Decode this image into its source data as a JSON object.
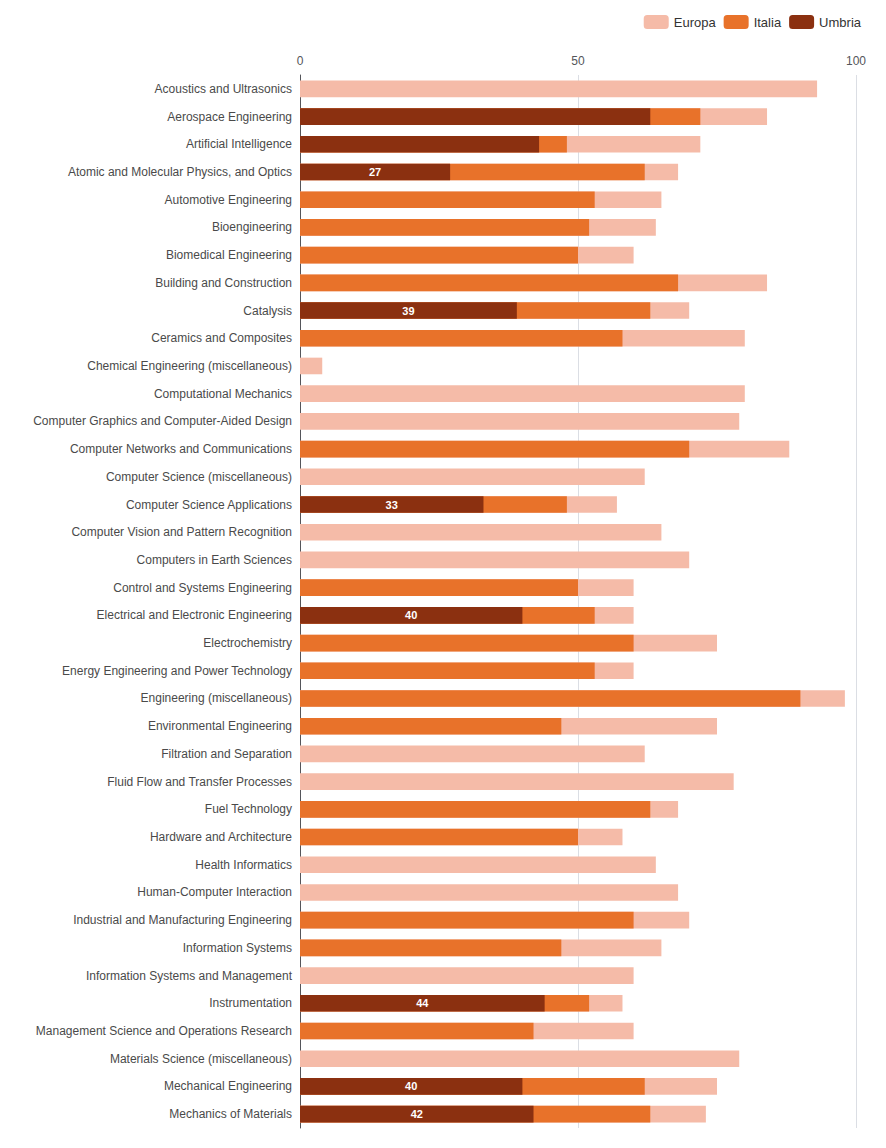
{
  "chart_data": {
    "type": "bar",
    "orientation": "horizontal",
    "categories": [
      "Acoustics and Ultrasonics",
      "Aerospace Engineering",
      "Artificial Intelligence",
      "Atomic and Molecular Physics, and Optics",
      "Automotive Engineering",
      "Bioengineering",
      "Biomedical Engineering",
      "Building and Construction",
      "Catalysis",
      "Ceramics and Composites",
      "Chemical Engineering (miscellaneous)",
      "Computational Mechanics",
      "Computer Graphics and Computer-Aided Design",
      "Computer Networks and Communications",
      "Computer Science (miscellaneous)",
      "Computer Science Applications",
      "Computer Vision and Pattern Recognition",
      "Computers in Earth Sciences",
      "Control and Systems Engineering",
      "Electrical and Electronic Engineering",
      "Electrochemistry",
      "Energy Engineering and Power Technology",
      "Engineering (miscellaneous)",
      "Environmental Engineering",
      "Filtration and Separation",
      "Fluid Flow and Transfer Processes",
      "Fuel Technology",
      "Hardware and Architecture",
      "Health Informatics",
      "Human-Computer Interaction",
      "Industrial and Manufacturing Engineering",
      "Information Systems",
      "Information Systems and Management",
      "Instrumentation",
      "Management Science and Operations Research",
      "Materials Science (miscellaneous)",
      "Mechanical Engineering",
      "Mechanics of Materials"
    ],
    "series": [
      {
        "name": "Europa",
        "color": "#f5bba8",
        "values": [
          93,
          84,
          72,
          68,
          65,
          64,
          60,
          84,
          70,
          80,
          4,
          80,
          79,
          88,
          62,
          57,
          65,
          70,
          60,
          60,
          75,
          60,
          98,
          75,
          62,
          78,
          68,
          58,
          64,
          68,
          70,
          65,
          60,
          58,
          60,
          79,
          75,
          73
        ]
      },
      {
        "name": "Italia",
        "color": "#e8722a",
        "values": [
          0,
          72,
          48,
          62,
          53,
          52,
          50,
          68,
          63,
          58,
          0,
          0,
          0,
          70,
          0,
          48,
          0,
          0,
          50,
          53,
          60,
          53,
          90,
          47,
          0,
          0,
          63,
          50,
          0,
          0,
          60,
          47,
          0,
          52,
          42,
          0,
          62,
          63
        ]
      },
      {
        "name": "Umbria",
        "color": "#8b3010",
        "data_labels": true,
        "values": [
          0,
          63,
          43,
          27,
          0,
          0,
          0,
          0,
          39,
          0,
          0,
          0,
          0,
          0,
          0,
          33,
          0,
          0,
          0,
          40,
          0,
          0,
          0,
          0,
          0,
          0,
          0,
          0,
          0,
          0,
          0,
          0,
          0,
          44,
          0,
          0,
          40,
          42
        ],
        "value_labels": [
          null,
          null,
          null,
          "27",
          null,
          null,
          null,
          null,
          "39",
          null,
          null,
          null,
          null,
          null,
          null,
          "33",
          null,
          null,
          null,
          "40",
          null,
          null,
          null,
          null,
          null,
          null,
          null,
          null,
          null,
          null,
          null,
          null,
          null,
          "44",
          null,
          null,
          "40",
          "42"
        ]
      }
    ],
    "xlim": [
      0,
      100
    ],
    "xticks": [
      0,
      50,
      100
    ],
    "grid": true,
    "legend": "upper right"
  }
}
